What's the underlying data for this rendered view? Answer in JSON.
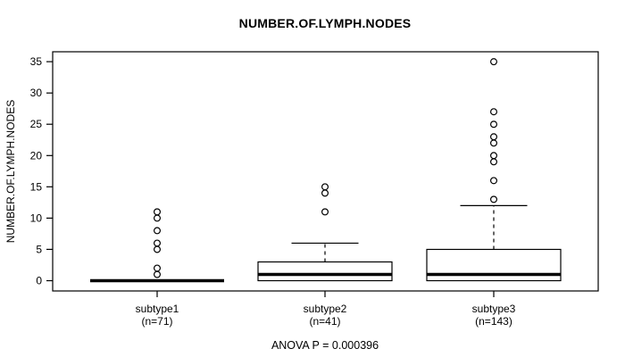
{
  "chart_data": {
    "type": "boxplot",
    "title": "NUMBER.OF.LYMPH.NODES",
    "ylabel": "NUMBER.OF.LYMPH.NODES",
    "annotation": "ANOVA P = 0.000396",
    "ylim": [
      0,
      35
    ],
    "yticks": [
      0,
      5,
      10,
      15,
      20,
      25,
      30,
      35
    ],
    "grid": false,
    "legend": "none",
    "groups": [
      {
        "label": "subtype1",
        "sublabel": "(n=71)",
        "q1": 0,
        "median": 0,
        "q3": 0,
        "whisker_low": 0,
        "whisker_high": 0,
        "outliers": [
          1,
          2,
          5,
          6,
          8,
          10,
          11
        ]
      },
      {
        "label": "subtype2",
        "sublabel": "(n=41)",
        "q1": 0,
        "median": 1,
        "q3": 3,
        "whisker_low": 0,
        "whisker_high": 6,
        "outliers": [
          11,
          14,
          15
        ]
      },
      {
        "label": "subtype3",
        "sublabel": "(n=143)",
        "q1": 0,
        "median": 1,
        "q3": 5,
        "whisker_low": 0,
        "whisker_high": 12,
        "outliers": [
          13,
          16,
          19,
          20,
          22,
          23,
          25,
          27,
          35
        ]
      }
    ],
    "colors": {
      "stroke": "#000000",
      "box_fill": "#ffffff",
      "background": "#ffffff"
    }
  }
}
